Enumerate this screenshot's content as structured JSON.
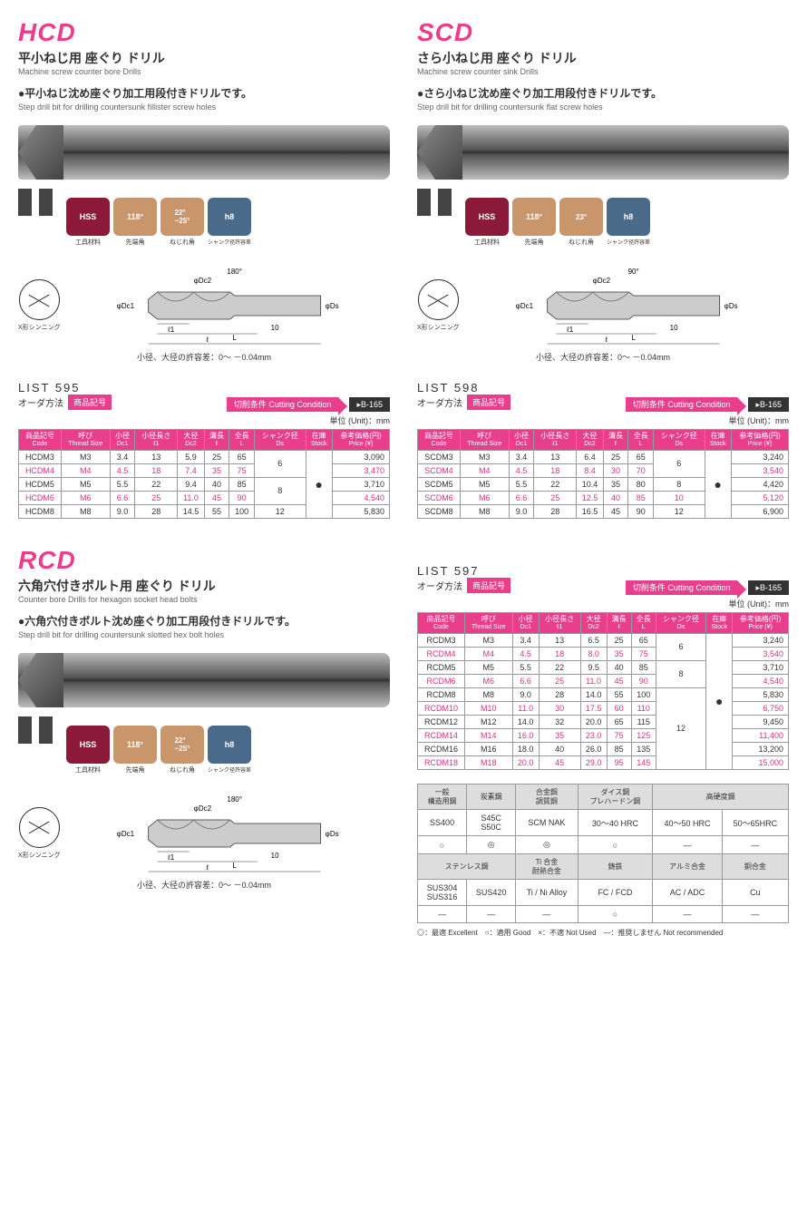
{
  "hcd": {
    "code": "HCD",
    "title_jp": "平小ねじ用 座ぐり ドリル",
    "title_en": "Machine screw counter bore Drills",
    "desc_jp": "●平小ねじ沈め座ぐり加工用段付きドリルです。",
    "desc_en": "Step drill bit for drilling countersunk fillister screw holes",
    "badges": {
      "hss": "HSS",
      "hss_lbl": "工具材料",
      "tip": "118°",
      "tip_lbl": "先端角",
      "helix": "22°\n~25°",
      "helix_lbl": "ねじれ角",
      "h8": "h8",
      "h8_lbl": "シャンク径許容差"
    },
    "thinning": "X形シンニング",
    "dim_labels": {
      "dc1": "φDc1",
      "dc2": "φDc2",
      "l1": "ℓ1",
      "l": "ℓ",
      "L": "L",
      "ds": "φDs",
      "ten": "10",
      "tip": "180°"
    },
    "tolerance": "小径、大径の許容差：0～ －0.04mm",
    "list": "LIST 595",
    "order_lbl": "オーダ方法",
    "order_tag": "商品記号",
    "cutting": "切削条件 Cutting Condition",
    "blink": "▸B-165",
    "unit": "単位 (Unit)：mm",
    "headers": [
      "商品記号\nCode",
      "呼び\nThread Size",
      "小径\nDc1",
      "小径長さ\nℓ1",
      "大径\nDc2",
      "溝長\nℓ",
      "全長\nL",
      "シャンク径\nDs",
      "在庫\nStock",
      "参考価格(円)\nPrice (¥)"
    ],
    "rows": [
      {
        "c": [
          "HCDM3",
          "M3",
          "3.4",
          "13",
          "5.9",
          "25",
          "65",
          "6",
          "",
          "3,090"
        ],
        "hl": false,
        "ds_span": 2,
        "st_span": 5
      },
      {
        "c": [
          "HCDM4",
          "M4",
          "4.5",
          "18",
          "7.4",
          "35",
          "75",
          "",
          "",
          "3,470"
        ],
        "hl": true
      },
      {
        "c": [
          "HCDM5",
          "M5",
          "5.5",
          "22",
          "9.4",
          "40",
          "85",
          "8",
          "",
          "3,710"
        ],
        "hl": false,
        "ds_span": 2
      },
      {
        "c": [
          "HCDM6",
          "M6",
          "6.6",
          "25",
          "11.0",
          "45",
          "90",
          "",
          "",
          "4,540"
        ],
        "hl": true
      },
      {
        "c": [
          "HCDM8",
          "M8",
          "9.0",
          "28",
          "14.5",
          "55",
          "100",
          "12",
          "",
          "5,830"
        ],
        "hl": false
      }
    ]
  },
  "scd": {
    "code": "SCD",
    "title_jp": "さら小ねじ用 座ぐり ドリル",
    "title_en": "Machine screw counter sink Drills",
    "desc_jp": "●さら小ねじ沈め座ぐり加工用段付きドリルです。",
    "desc_en": "Step drill bit for drilling countersunk flat screw holes",
    "badges": {
      "hss": "HSS",
      "hss_lbl": "工具材料",
      "tip": "118°",
      "tip_lbl": "先端角",
      "helix": "23°",
      "helix_lbl": "ねじれ角",
      "h8": "h8",
      "h8_lbl": "シャンク径許容差"
    },
    "thinning": "X形シンニング",
    "dim_labels": {
      "dc1": "φDc1",
      "dc2": "φDc2",
      "l1": "ℓ1",
      "l": "ℓ",
      "L": "L",
      "ds": "φDs",
      "ten": "10",
      "tip": "90°"
    },
    "tolerance": "小径、大径の許容差：0～ －0.04mm",
    "list": "LIST 598",
    "order_lbl": "オーダ方法",
    "order_tag": "商品記号",
    "cutting": "切削条件 Cutting Condition",
    "blink": "▸B-165",
    "unit": "単位 (Unit)：mm",
    "headers": [
      "商品記号\nCode",
      "呼び\nThread Size",
      "小径\nDc1",
      "小径長さ\nℓ1",
      "大径\nDc2",
      "溝長\nℓ",
      "全長\nL",
      "シャンク径\nDs",
      "在庫\nStock",
      "参考価格(円)\nPrice (¥)"
    ],
    "rows": [
      {
        "c": [
          "SCDM3",
          "M3",
          "3.4",
          "13",
          "6.4",
          "25",
          "65",
          "6",
          "",
          "3,240"
        ],
        "hl": false,
        "ds_span": 2,
        "st_span": 5
      },
      {
        "c": [
          "SCDM4",
          "M4",
          "4.5",
          "18",
          "8.4",
          "30",
          "70",
          "",
          "",
          "3,540"
        ],
        "hl": true
      },
      {
        "c": [
          "SCDM5",
          "M5",
          "5.5",
          "22",
          "10.4",
          "35",
          "80",
          "8",
          "",
          "4,420"
        ],
        "hl": false
      },
      {
        "c": [
          "SCDM6",
          "M6",
          "6.6",
          "25",
          "12.5",
          "40",
          "85",
          "10",
          "",
          "5,120"
        ],
        "hl": true
      },
      {
        "c": [
          "SCDM8",
          "M8",
          "9.0",
          "28",
          "16.5",
          "45",
          "90",
          "12",
          "",
          "6,900"
        ],
        "hl": false
      }
    ]
  },
  "rcd": {
    "code": "RCD",
    "title_jp": "六角穴付きボルト用 座ぐり ドリル",
    "title_en": "Counter bore Drills for hexagon socket head bolts",
    "desc_jp": "●六角穴付きボルト沈め座ぐり加工用段付きドリルです。",
    "desc_en": "Step drill bit for drilling countersunk slotted hex bolt holes",
    "badges": {
      "hss": "HSS",
      "hss_lbl": "工具材料",
      "tip": "118°",
      "tip_lbl": "先端角",
      "helix": "22°\n~25°",
      "helix_lbl": "ねじれ角",
      "h8": "h8",
      "h8_lbl": "シャンク径許容差"
    },
    "thinning": "X形シンニング",
    "dim_labels": {
      "dc1": "φDc1",
      "dc2": "φDc2",
      "l1": "ℓ1",
      "l": "ℓ",
      "L": "L",
      "ds": "φDs",
      "ten": "10",
      "tip": "180°"
    },
    "tolerance": "小径、大径の許容差：0～ －0.04mm",
    "list": "LIST 597",
    "order_lbl": "オーダ方法",
    "order_tag": "商品記号",
    "cutting": "切削条件 Cutting Condition",
    "blink": "▸B-165",
    "unit": "単位 (Unit)：mm",
    "headers": [
      "商品記号\nCode",
      "呼び\nThread Size",
      "小径\nDc1",
      "小径長さ\nℓ1",
      "大径\nDc2",
      "溝長\nℓ",
      "全長\nL",
      "シャンク径\nDs",
      "在庫\nStock",
      "参考価格(円)\nPrice (¥)"
    ],
    "rows": [
      {
        "c": [
          "RCDM3",
          "M3",
          "3.4",
          "13",
          "6.5",
          "25",
          "65",
          "6",
          "",
          "3,240"
        ],
        "hl": false,
        "ds_span": 2,
        "st_span": 10
      },
      {
        "c": [
          "RCDM4",
          "M4",
          "4.5",
          "18",
          "8.0",
          "35",
          "75",
          "",
          "",
          "3,540"
        ],
        "hl": true
      },
      {
        "c": [
          "RCDM5",
          "M5",
          "5.5",
          "22",
          "9.5",
          "40",
          "85",
          "8",
          "",
          "3,710"
        ],
        "hl": false,
        "ds_span": 2
      },
      {
        "c": [
          "RCDM6",
          "M6",
          "6.6",
          "25",
          "11.0",
          "45",
          "90",
          "",
          "",
          "4,540"
        ],
        "hl": true
      },
      {
        "c": [
          "RCDM8",
          "M8",
          "9.0",
          "28",
          "14.0",
          "55",
          "100",
          "12",
          "",
          "5,830"
        ],
        "hl": false,
        "ds_span": 6
      },
      {
        "c": [
          "RCDM10",
          "M10",
          "11.0",
          "30",
          "17.5",
          "60",
          "110",
          "",
          "",
          "6,750"
        ],
        "hl": true
      },
      {
        "c": [
          "RCDM12",
          "M12",
          "14.0",
          "32",
          "20.0",
          "65",
          "115",
          "",
          "",
          "9,450"
        ],
        "hl": false
      },
      {
        "c": [
          "RCDM14",
          "M14",
          "16.0",
          "35",
          "23.0",
          "75",
          "125",
          "",
          "",
          "11,400"
        ],
        "hl": true
      },
      {
        "c": [
          "RCDM16",
          "M16",
          "18.0",
          "40",
          "26.0",
          "85",
          "135",
          "",
          "",
          "13,200"
        ],
        "hl": false
      },
      {
        "c": [
          "RCDM18",
          "M18",
          "20.0",
          "45",
          "29.0",
          "95",
          "145",
          "",
          "",
          "15,000"
        ],
        "hl": true
      }
    ]
  },
  "materials": {
    "row1_h": [
      "一般\n構造用鋼",
      "炭素鋼",
      "合金鋼\n調質鋼",
      "ダイス鋼\nプレハードン鋼",
      "高硬度鋼",
      ""
    ],
    "row1_d": [
      "SS400",
      "S45C\nS50C",
      "SCM NAK",
      "30～40 HRC",
      "40～50 HRC",
      "50～65HRC"
    ],
    "row1_m": [
      "○",
      "◎",
      "◎",
      "○",
      "―",
      "―"
    ],
    "row2_h": [
      "ステンレス鋼",
      "",
      "Ti 合金\n耐熱合金",
      "鋳鉄",
      "アルミ合金",
      "銅合金"
    ],
    "row2_d": [
      "SUS304\nSUS316",
      "SUS420",
      "Ti / Ni Alloy",
      "FC / FCD",
      "AC / ADC",
      "Cu"
    ],
    "row2_m": [
      "―",
      "―",
      "―",
      "○",
      "―",
      "―"
    ],
    "legend": "◎：最適 Excellent　○：適用 Good　×：不適 Not Used　―：推奨しません Not recommended"
  }
}
